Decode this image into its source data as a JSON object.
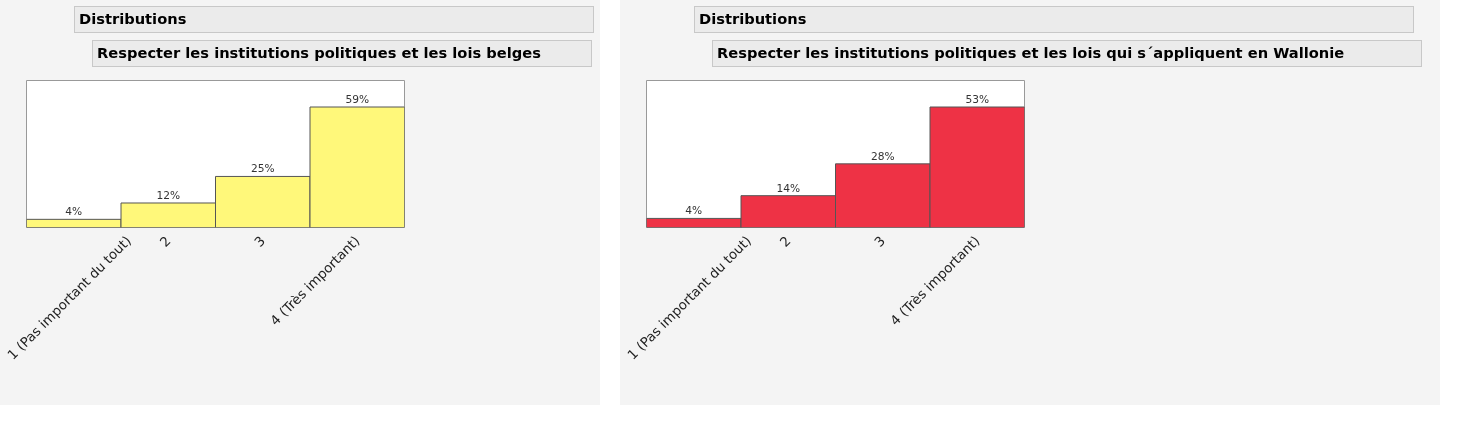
{
  "chart_data": [
    {
      "type": "bar",
      "title": "Distributions",
      "subtitle": "Respecter les institutions politiques et les lois belges",
      "categories": [
        "1 (Pas important du tout)",
        "2",
        "3",
        "4 (Très important)"
      ],
      "values": [
        4,
        12,
        25,
        59
      ],
      "value_labels": [
        "4%",
        "12%",
        "25%",
        "59%"
      ],
      "color": "#fff87a",
      "tick_labels": "x",
      "grid": false
    },
    {
      "type": "bar",
      "title": "Distributions",
      "subtitle": "Respecter les institutions politiques et les lois qui s´appliquent en Wallonie",
      "categories": [
        "1 (Pas important du tout)",
        "2",
        "3",
        "4 (Très important)"
      ],
      "values": [
        4,
        14,
        28,
        53
      ],
      "value_labels": [
        "4%",
        "14%",
        "28%",
        "53%"
      ],
      "color": "#ee3245",
      "tick_labels": "x",
      "grid": false
    }
  ]
}
